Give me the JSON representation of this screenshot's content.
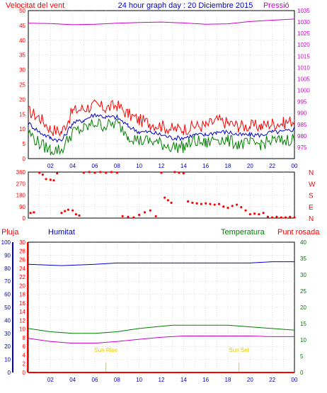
{
  "header": {
    "left_title": "Velocitat del vent",
    "center_title": "24 hour graph day : 20 Diciembre 2015",
    "right_title": "Pressió"
  },
  "legend": {
    "rain": "Pluja",
    "humidity": "Humitat",
    "temperature": "Temperatura",
    "dewpoint": "Punt rosada"
  },
  "sun": {
    "rise_label": "Sun Rise",
    "set_label": "Sun Set",
    "rise_hour": 7.0,
    "set_hour": 19.0
  },
  "colors": {
    "red": "#ff0000",
    "blue": "#0000cc",
    "green": "#008000",
    "magenta": "#cc00cc",
    "darkred": "#cc0000",
    "grid": "#c0c0c0",
    "sun": "#e6c800"
  },
  "chart_data": [
    {
      "type": "line",
      "name": "wind-and-pressure",
      "x_ticks": [
        "02",
        "04",
        "06",
        "08",
        "10",
        "12",
        "14",
        "16",
        "18",
        "20",
        "22",
        "00"
      ],
      "y_left": {
        "min": 0,
        "max": 50,
        "ticks": [
          0,
          5,
          10,
          15,
          20,
          25,
          30,
          35,
          40,
          45,
          50
        ]
      },
      "y_right": {
        "min": 970,
        "max": 1035,
        "ticks": [
          975,
          980,
          985,
          990,
          995,
          1000,
          1005,
          1010,
          1015,
          1020,
          1025,
          1030,
          1035
        ]
      },
      "series": [
        {
          "key": "gust",
          "color": "red",
          "axis": "left",
          "points": [
            [
              0,
              16
            ],
            [
              1,
              14
            ],
            [
              2,
              10
            ],
            [
              3,
              9
            ],
            [
              4,
              16
            ],
            [
              5,
              17
            ],
            [
              6,
              18
            ],
            [
              7,
              17
            ],
            [
              8,
              18
            ],
            [
              9,
              15
            ],
            [
              10,
              13
            ],
            [
              11,
              12
            ],
            [
              12,
              11
            ],
            [
              13,
              10
            ],
            [
              14,
              10
            ],
            [
              15,
              11
            ],
            [
              16,
              11
            ],
            [
              17,
              13
            ],
            [
              18,
              12
            ],
            [
              19,
              11
            ],
            [
              20,
              11
            ],
            [
              21,
              11
            ],
            [
              22,
              12
            ],
            [
              23,
              12
            ],
            [
              24,
              13
            ]
          ]
        },
        {
          "key": "average",
          "color": "blue",
          "axis": "left",
          "points": [
            [
              0,
              12
            ],
            [
              1,
              9
            ],
            [
              2,
              7
            ],
            [
              3,
              6
            ],
            [
              4,
              12
            ],
            [
              5,
              13
            ],
            [
              6,
              15
            ],
            [
              7,
              14
            ],
            [
              8,
              14
            ],
            [
              9,
              11
            ],
            [
              10,
              9
            ],
            [
              11,
              9
            ],
            [
              12,
              8
            ],
            [
              13,
              7
            ],
            [
              14,
              7
            ],
            [
              15,
              8
            ],
            [
              16,
              8
            ],
            [
              17,
              9
            ],
            [
              18,
              9
            ],
            [
              19,
              8
            ],
            [
              20,
              8
            ],
            [
              21,
              8
            ],
            [
              22,
              9
            ],
            [
              23,
              9
            ],
            [
              24,
              10
            ]
          ]
        },
        {
          "key": "speed",
          "color": "green",
          "axis": "left",
          "points": [
            [
              0,
              9
            ],
            [
              1,
              5
            ],
            [
              2,
              3
            ],
            [
              3,
              3
            ],
            [
              4,
              9
            ],
            [
              5,
              10
            ],
            [
              6,
              12
            ],
            [
              7,
              11
            ],
            [
              8,
              12
            ],
            [
              9,
              8
            ],
            [
              10,
              6
            ],
            [
              11,
              6
            ],
            [
              12,
              5
            ],
            [
              13,
              4
            ],
            [
              14,
              4
            ],
            [
              15,
              6
            ],
            [
              16,
              5
            ],
            [
              17,
              7
            ],
            [
              18,
              6
            ],
            [
              19,
              5
            ],
            [
              20,
              5
            ],
            [
              21,
              5
            ],
            [
              22,
              6
            ],
            [
              23,
              6
            ],
            [
              24,
              7
            ]
          ]
        },
        {
          "key": "pressure",
          "color": "magenta",
          "axis": "right",
          "points": [
            [
              0,
              1029.5
            ],
            [
              2,
              1029.3
            ],
            [
              4,
              1028.8
            ],
            [
              6,
              1029.0
            ],
            [
              8,
              1029.5
            ],
            [
              10,
              1029.8
            ],
            [
              12,
              1030.0
            ],
            [
              14,
              1029.6
            ],
            [
              16,
              1029.0
            ],
            [
              18,
              1029.2
            ],
            [
              20,
              1030.2
            ],
            [
              22,
              1030.8
            ],
            [
              24,
              1031.3
            ]
          ]
        }
      ]
    },
    {
      "type": "scatter",
      "name": "wind-direction",
      "x_ticks": [
        "02",
        "04",
        "06",
        "08",
        "10",
        "12",
        "14",
        "16",
        "18",
        "20",
        "22",
        "00"
      ],
      "y_left": {
        "min": 0,
        "max": 360,
        "ticks": [
          0,
          90,
          180,
          270,
          360
        ]
      },
      "y_right_labels": [
        "N",
        "W",
        "S",
        "E",
        "N"
      ],
      "series": [
        {
          "key": "direction",
          "color": "red",
          "points": [
            [
              0.2,
              40
            ],
            [
              0.5,
              45
            ],
            [
              1.0,
              355
            ],
            [
              1.3,
              340
            ],
            [
              1.6,
              305
            ],
            [
              2.0,
              300
            ],
            [
              2.3,
              295
            ],
            [
              2.6,
              350
            ],
            [
              3.0,
              40
            ],
            [
              3.3,
              55
            ],
            [
              3.6,
              65
            ],
            [
              4.0,
              60
            ],
            [
              4.3,
              30
            ],
            [
              4.6,
              20
            ],
            [
              5.0,
              355
            ],
            [
              5.5,
              360
            ],
            [
              6.0,
              355
            ],
            [
              6.5,
              360
            ],
            [
              7.0,
              355
            ],
            [
              7.5,
              360
            ],
            [
              8.0,
              355
            ],
            [
              8.5,
              15
            ],
            [
              9.0,
              10
            ],
            [
              9.5,
              5
            ],
            [
              10.0,
              25
            ],
            [
              10.5,
              45
            ],
            [
              11.0,
              60
            ],
            [
              11.5,
              15
            ],
            [
              12.0,
              355
            ],
            [
              12.3,
              160
            ],
            [
              12.6,
              140
            ],
            [
              12.9,
              120
            ],
            [
              13.2,
              360
            ],
            [
              13.6,
              355
            ],
            [
              14.0,
              350
            ],
            [
              14.4,
              130
            ],
            [
              14.8,
              120
            ],
            [
              15.2,
              115
            ],
            [
              15.6,
              110
            ],
            [
              16.0,
              115
            ],
            [
              16.4,
              110
            ],
            [
              16.8,
              105
            ],
            [
              17.2,
              110
            ],
            [
              17.6,
              90
            ],
            [
              18.0,
              80
            ],
            [
              18.4,
              95
            ],
            [
              18.8,
              105
            ],
            [
              19.2,
              85
            ],
            [
              19.6,
              60
            ],
            [
              20.0,
              30
            ],
            [
              20.4,
              35
            ],
            [
              20.8,
              30
            ],
            [
              21.2,
              40
            ],
            [
              21.6,
              10
            ],
            [
              22.0,
              5
            ],
            [
              22.4,
              10
            ],
            [
              22.8,
              5
            ],
            [
              23.2,
              5
            ],
            [
              23.6,
              10
            ],
            [
              24.0,
              5
            ]
          ]
        }
      ]
    },
    {
      "type": "line",
      "name": "rain-humidity-temperature",
      "x_ticks": [
        "02",
        "04",
        "06",
        "08",
        "10",
        "12",
        "14",
        "16",
        "18",
        "20",
        "22",
        "00"
      ],
      "y_humidity": {
        "min": 0,
        "max": 100,
        "ticks": [
          0,
          10,
          20,
          30,
          40,
          50,
          60,
          70,
          80,
          90,
          100
        ]
      },
      "y_rain": {
        "min": 0,
        "max": 30,
        "ticks": [
          0,
          2,
          4,
          6,
          8,
          10,
          12,
          14,
          16,
          18,
          20,
          22,
          24,
          26,
          28,
          30
        ]
      },
      "y_temp": {
        "min": 0,
        "max": 40,
        "ticks": [
          0,
          5,
          10,
          15,
          20,
          25,
          30,
          35,
          40
        ]
      },
      "series": [
        {
          "key": "humidity",
          "color": "blue",
          "axis": "humidity",
          "points": [
            [
              0,
              83
            ],
            [
              3,
              82
            ],
            [
              6,
              83
            ],
            [
              8,
              84
            ],
            [
              10,
              84
            ],
            [
              12,
              84
            ],
            [
              14,
              84
            ],
            [
              16,
              84
            ],
            [
              18,
              84
            ],
            [
              20,
              84
            ],
            [
              22,
              85
            ],
            [
              24,
              85
            ]
          ]
        },
        {
          "key": "temperature",
          "color": "green",
          "axis": "temp",
          "points": [
            [
              0,
              13.5
            ],
            [
              2,
              12.5
            ],
            [
              4,
              12
            ],
            [
              6,
              12
            ],
            [
              8,
              12.5
            ],
            [
              10,
              13.5
            ],
            [
              12,
              14.2
            ],
            [
              13,
              14.5
            ],
            [
              16,
              14.5
            ],
            [
              18,
              14.5
            ],
            [
              20,
              14
            ],
            [
              22,
              13.5
            ],
            [
              24,
              13
            ]
          ]
        },
        {
          "key": "dewpoint",
          "color": "magenta",
          "axis": "temp",
          "points": [
            [
              0,
              10.5
            ],
            [
              2,
              9.5
            ],
            [
              4,
              9
            ],
            [
              6,
              9
            ],
            [
              8,
              9.5
            ],
            [
              10,
              10.2
            ],
            [
              12,
              10.8
            ],
            [
              14,
              11.2
            ],
            [
              16,
              11.2
            ],
            [
              18,
              11.2
            ],
            [
              20,
              11.2
            ],
            [
              22,
              11
            ],
            [
              24,
              11
            ]
          ]
        },
        {
          "key": "rain",
          "color": "red",
          "axis": "rain",
          "points": [
            [
              0,
              0
            ],
            [
              24,
              0
            ]
          ]
        }
      ]
    }
  ]
}
